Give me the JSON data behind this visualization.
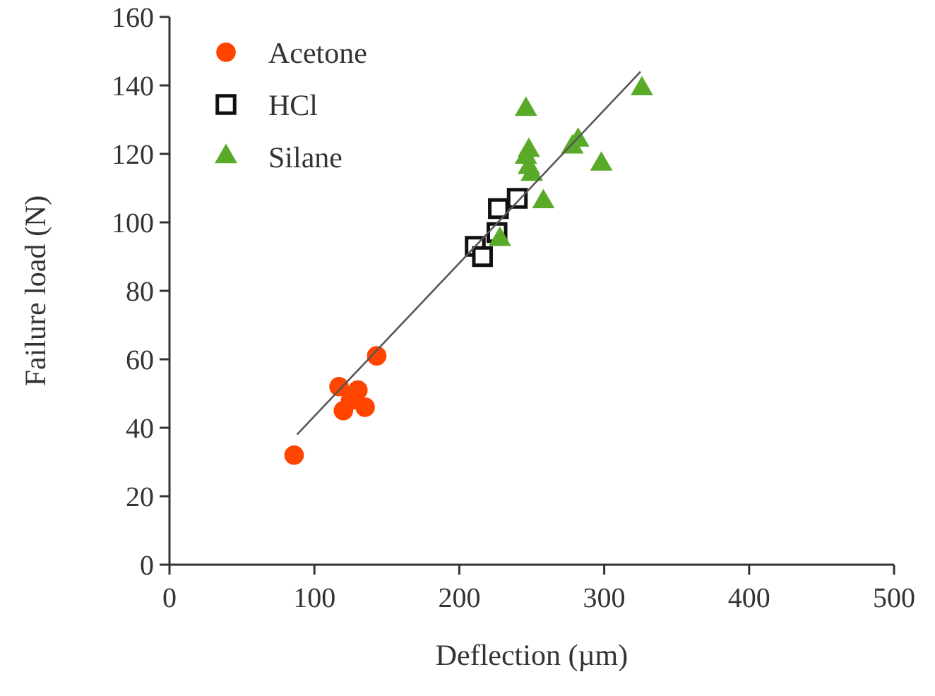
{
  "chart_data": {
    "type": "scatter",
    "xlabel": "Deflection (µm)",
    "ylabel": "Failure load (N)",
    "xlim": [
      0,
      500
    ],
    "xticks": [
      0,
      100,
      200,
      300,
      400,
      500
    ],
    "ylim": [
      0,
      160
    ],
    "yticks": [
      0,
      20,
      40,
      60,
      80,
      100,
      120,
      140,
      160
    ],
    "grid": false,
    "legend": "top left",
    "series": [
      {
        "name": "Acetone",
        "color": "#ff4500",
        "marker": "circle",
        "x": [
          86,
          117,
          130,
          120,
          135,
          143,
          125
        ],
        "values": [
          32,
          52,
          51,
          45,
          46,
          61,
          48
        ]
      },
      {
        "name": "HCl",
        "color": "#111111",
        "marker": "square",
        "x": [
          211,
          216,
          226,
          227,
          240
        ],
        "values": [
          93,
          90,
          97,
          104,
          107
        ]
      },
      {
        "name": "Silane",
        "color": "#5aaa2a",
        "marker": "triangle",
        "x": [
          246,
          248,
          246,
          248,
          250,
          228,
          258,
          278,
          282,
          298,
          326
        ],
        "values": [
          133,
          121,
          119,
          116,
          114,
          95,
          106,
          122,
          124,
          117,
          139
        ]
      },
      {
        "type": "line",
        "color": "#555555",
        "marker": "none",
        "x": [
          88,
          325
        ],
        "values": [
          38,
          144
        ]
      }
    ]
  }
}
